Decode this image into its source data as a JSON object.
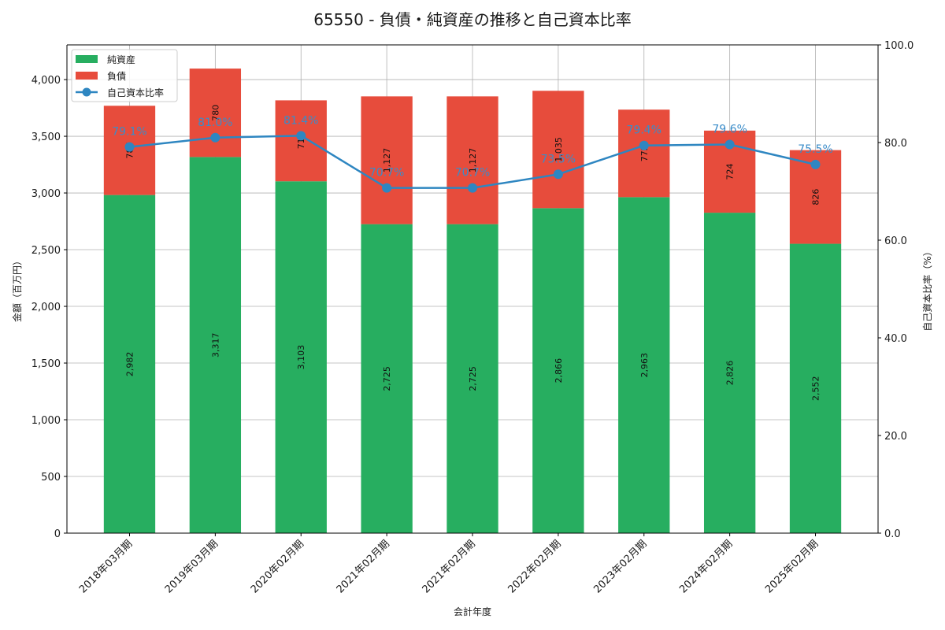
{
  "chart_data": {
    "type": "bar",
    "stacked": true,
    "title": "65550 - 負債・純資産の推移と自己資本比率",
    "xlabel": "会計年度",
    "ylabel": "金額（百万円）",
    "y2label": "自己資本比率（%）",
    "categories": [
      "2018年03月期",
      "2019年03月期",
      "2020年02月期",
      "2021年02月期",
      "2021年02月期",
      "2022年02月期",
      "2023年02月期",
      "2024年02月期",
      "2025年02月期"
    ],
    "series": [
      {
        "name": "純資産",
        "type": "bar",
        "color": "#27ae60",
        "values": [
          2982,
          3317,
          3103,
          2725,
          2725,
          2866,
          2963,
          2826,
          2552
        ],
        "labels": [
          "2,982",
          "3,317",
          "3,103",
          "2,725",
          "2,725",
          "2,866",
          "2,963",
          "2,826",
          "2,552"
        ]
      },
      {
        "name": "負債",
        "type": "bar",
        "color": "#e74c3c",
        "values": [
          787,
          780,
          714,
          1127,
          1127,
          1035,
          772,
          724,
          826
        ],
        "labels": [
          "787",
          "780",
          "714",
          "1,127",
          "1,127",
          "1,035",
          "772",
          "724",
          "826"
        ]
      },
      {
        "name": "自己資本比率",
        "type": "line",
        "axis": "right",
        "color": "#2e86c1",
        "values": [
          79.1,
          81.0,
          81.4,
          70.7,
          70.7,
          73.5,
          79.4,
          79.6,
          75.5
        ],
        "labels": [
          "79.1%",
          "81.0%",
          "81.4%",
          "70.7%",
          "70.7%",
          "73.5%",
          "79.4%",
          "79.6%",
          "75.5%"
        ]
      }
    ],
    "ylim": [
      0,
      4306
    ],
    "yticks": [
      0,
      500,
      1000,
      1500,
      2000,
      2500,
      3000,
      3500,
      4000
    ],
    "ytick_labels": [
      "0",
      "500",
      "1,000",
      "1,500",
      "2,000",
      "2,500",
      "3,000",
      "3,500",
      "4,000"
    ],
    "y2lim": [
      0,
      100
    ],
    "y2ticks": [
      0,
      20,
      40,
      60,
      80,
      100
    ],
    "y2tick_labels": [
      "0.0",
      "20.0",
      "40.0",
      "60.0",
      "80.0",
      "100.0"
    ],
    "grid": true,
    "legend_position": "upper left"
  }
}
